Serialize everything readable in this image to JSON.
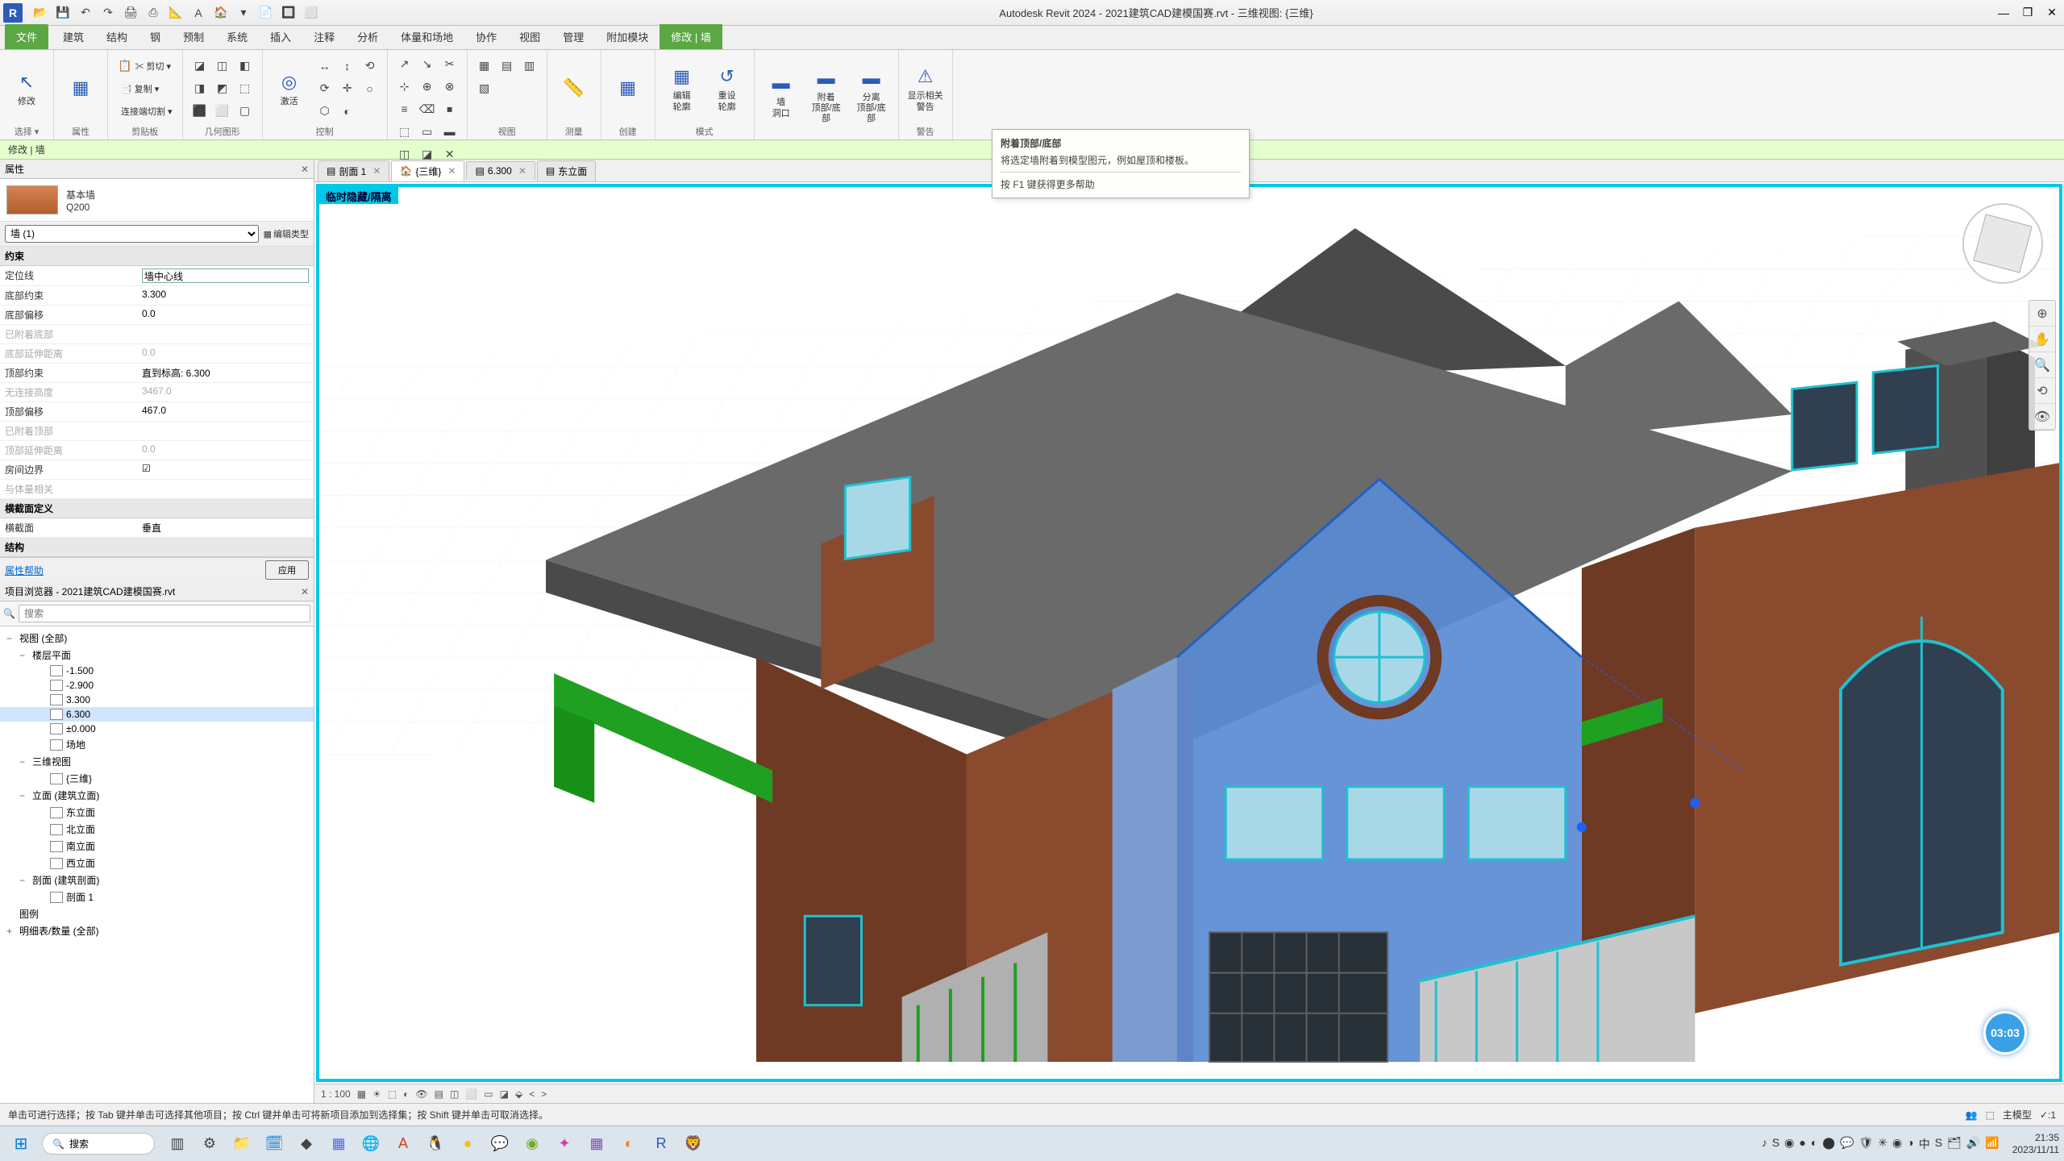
{
  "app": {
    "title": "Autodesk Revit 2024 - 2021建筑CAD建模国赛.rvt - 三维视图: {三维}",
    "logo": "R"
  },
  "qat": [
    "📂",
    "💾",
    "↶",
    "↷",
    "🖨",
    "⎙",
    "📐",
    "A",
    "🏠",
    "▾",
    "📄",
    "🔲",
    "⬜"
  ],
  "winctrl": {
    "min": "—",
    "max": "❐",
    "close": "✕"
  },
  "tabs": {
    "file": "文件",
    "items": [
      "建筑",
      "结构",
      "钢",
      "预制",
      "系统",
      "插入",
      "注释",
      "分析",
      "体量和场地",
      "协作",
      "视图",
      "管理",
      "附加模块"
    ],
    "active": "修改 | 墙"
  },
  "ribbon": {
    "groups": [
      {
        "title": "选择 ▾",
        "bigs": [
          {
            "icon": "↖",
            "label": "修改"
          }
        ]
      },
      {
        "title": "属性",
        "bigs": [
          {
            "icon": "▦",
            "label": ""
          }
        ]
      },
      {
        "title": "剪贴板",
        "rows": [
          [
            "📋",
            "✂ 剪切 ▾"
          ],
          [
            "",
            "📑 复制 ▾"
          ],
          [
            "",
            "连接端切割 ▾"
          ]
        ]
      },
      {
        "title": "几何图形",
        "cells": [
          "◪",
          "◫",
          "◧",
          "◨",
          "◩",
          "⬚",
          "⬛",
          "⬜",
          "▢"
        ]
      },
      {
        "title": "控制",
        "bigs": [
          {
            "icon": "◎",
            "label": "激活"
          }
        ],
        "cells": [
          "↔",
          "↕",
          "⟲",
          "⟳",
          "✛",
          "○",
          "⬡",
          "◐"
        ]
      },
      {
        "title": "修改",
        "cells": [
          "↗",
          "↘",
          "✂",
          "⊹",
          "⊕",
          "⊗",
          "≡",
          "⌫",
          "⏹",
          "⬚",
          "▭",
          "▬",
          "◫",
          "◪",
          "✕"
        ]
      },
      {
        "title": "视图",
        "cells": [
          "▦",
          "▤",
          "▥",
          "▧"
        ]
      },
      {
        "title": "测量",
        "bigs": [
          {
            "icon": "📏",
            "label": ""
          }
        ]
      },
      {
        "title": "创建",
        "bigs": [
          {
            "icon": "▦",
            "label": ""
          }
        ]
      },
      {
        "title": "模式",
        "bigs": [
          {
            "icon": "▦",
            "label": "编辑\n轮廓"
          },
          {
            "icon": "↺",
            "label": "重设\n轮廓"
          }
        ]
      },
      {
        "title": "",
        "bigs": [
          {
            "icon": "▬",
            "label": "墙\n洞口"
          },
          {
            "icon": "▬",
            "label": "附着\n顶部/底部"
          },
          {
            "icon": "▬",
            "label": "分离\n顶部/底部"
          }
        ]
      },
      {
        "title": "警告",
        "bigs": [
          {
            "icon": "⚠",
            "label": "显示相关\n警告"
          }
        ]
      }
    ]
  },
  "tooltip": {
    "title": "附着顶部/底部",
    "body": "将选定墙附着到模型图元，例如屋顶和楼板。",
    "help": "按 F1 键获得更多帮助"
  },
  "context": "修改 | 墙",
  "properties": {
    "header": "属性",
    "type_name": "基本墙",
    "type_sub": "Q200",
    "filter": "墙 (1)",
    "edit_type": "编辑类型",
    "sections": [
      {
        "name": "约束",
        "rows": [
          {
            "k": "定位线",
            "v": "墙中心线",
            "editable": true
          },
          {
            "k": "底部约束",
            "v": "3.300"
          },
          {
            "k": "底部偏移",
            "v": "0.0"
          },
          {
            "k": "已附着底部",
            "v": "",
            "dim": true
          },
          {
            "k": "底部延伸距离",
            "v": "0.0",
            "dim": true
          },
          {
            "k": "顶部约束",
            "v": "直到标高: 6.300"
          },
          {
            "k": "无连接高度",
            "v": "3467.0",
            "dim": true
          },
          {
            "k": "顶部偏移",
            "v": "467.0"
          },
          {
            "k": "已附着顶部",
            "v": "",
            "dim": true
          },
          {
            "k": "顶部延伸距离",
            "v": "0.0",
            "dim": true
          },
          {
            "k": "房间边界",
            "v": "☑"
          },
          {
            "k": "与体量相关",
            "v": "",
            "dim": true
          }
        ]
      },
      {
        "name": "横截面定义",
        "rows": [
          {
            "k": "横截面",
            "v": "垂直"
          }
        ]
      },
      {
        "name": "结构",
        "rows": []
      }
    ],
    "help_link": "属性帮助",
    "apply": "应用"
  },
  "browser": {
    "header": "项目浏览器 - 2021建筑CAD建模国赛.rvt",
    "search_placeholder": "搜索",
    "tree": [
      {
        "lvl": 0,
        "exp": "−",
        "label": "视图 (全部)"
      },
      {
        "lvl": 1,
        "exp": "−",
        "label": "楼层平面"
      },
      {
        "lvl": 2,
        "label": "-1.500"
      },
      {
        "lvl": 2,
        "label": "-2.900"
      },
      {
        "lvl": 2,
        "label": "3.300"
      },
      {
        "lvl": 2,
        "label": "6.300",
        "sel": true
      },
      {
        "lvl": 2,
        "label": "±0.000"
      },
      {
        "lvl": 2,
        "label": "场地"
      },
      {
        "lvl": 1,
        "exp": "−",
        "label": "三维视图"
      },
      {
        "lvl": 2,
        "label": "{三维}"
      },
      {
        "lvl": 1,
        "exp": "−",
        "label": "立面 (建筑立面)"
      },
      {
        "lvl": 2,
        "label": "东立面"
      },
      {
        "lvl": 2,
        "label": "北立面"
      },
      {
        "lvl": 2,
        "label": "南立面"
      },
      {
        "lvl": 2,
        "label": "西立面"
      },
      {
        "lvl": 1,
        "exp": "−",
        "label": "剖面 (建筑剖面)"
      },
      {
        "lvl": 2,
        "label": "剖面 1"
      },
      {
        "lvl": 0,
        "label": "图例"
      },
      {
        "lvl": 0,
        "exp": "+",
        "label": "明细表/数量 (全部)"
      }
    ]
  },
  "viewtabs": [
    {
      "icon": "▤",
      "label": "剖面 1",
      "close": true
    },
    {
      "icon": "🏠",
      "label": "{三维}",
      "close": true,
      "active": true
    },
    {
      "icon": "▤",
      "label": "6.300",
      "close": true
    },
    {
      "icon": "▤",
      "label": "东立面"
    }
  ],
  "viewport": {
    "tag": "临时隐藏/隔离",
    "scale": "1 : 100",
    "badge": "03:03"
  },
  "viewcontrol_icons": [
    "▦",
    "☀",
    "⬚",
    "◐",
    "👁",
    "▤",
    "◫",
    "⬜",
    "▭",
    "◪",
    "⬙",
    "<",
    ">"
  ],
  "scene": {
    "colors": {
      "roof": "#4a4a4a",
      "roof_light": "#6a6a6a",
      "wall_brick": "#8a4a2e",
      "wall_brick_dark": "#6e3a24",
      "wall_sel": "#5a8ad4",
      "wall_sel_light": "#7aa4e0",
      "window_frame": "#20c0d0",
      "window_glass": "#a8d8e8",
      "rail_green": "#20a020",
      "chimney": "#505050",
      "ground": "#f0f0f0"
    }
  },
  "statusbar": {
    "hint": "单击可进行选择；按 Tab 键并单击可选择其他项目；按 Ctrl 键并单击可将新项目添加到选择集；按 Shift 键并单击可取消选择。",
    "model": "主模型",
    "filter": "✓:1"
  },
  "taskbar": {
    "search": "搜索",
    "apps": [
      {
        "c": "#444",
        "t": "▥"
      },
      {
        "c": "#444",
        "t": "⚙"
      },
      {
        "c": "#f0b030",
        "t": "📁"
      },
      {
        "c": "#0078d4",
        "t": "🗓"
      },
      {
        "c": "#444",
        "t": "◆"
      },
      {
        "c": "#4a6aff",
        "t": "▦"
      },
      {
        "c": "#0078d4",
        "t": "🌐"
      },
      {
        "c": "#d04020",
        "t": "A"
      },
      {
        "c": "#f08030",
        "t": "🐧"
      },
      {
        "c": "#f0c020",
        "t": "●"
      },
      {
        "c": "#20b060",
        "t": "💬"
      },
      {
        "c": "#70b020",
        "t": "◉"
      },
      {
        "c": "#d040a0",
        "t": "✦"
      },
      {
        "c": "#8050c0",
        "t": "▦"
      },
      {
        "c": "#f08020",
        "t": "◐"
      },
      {
        "c": "#2b5cb8",
        "t": "R"
      },
      {
        "c": "#c08060",
        "t": "🦁"
      }
    ],
    "tray_icons": [
      "♪",
      "S",
      "◉",
      "●",
      "◐",
      "⬤",
      "💬",
      "🛡",
      "✳",
      "◉",
      "◑",
      "中",
      "S",
      "🗂",
      "🔊",
      "📶"
    ],
    "time": "21:35",
    "date": "2023/11/11"
  }
}
